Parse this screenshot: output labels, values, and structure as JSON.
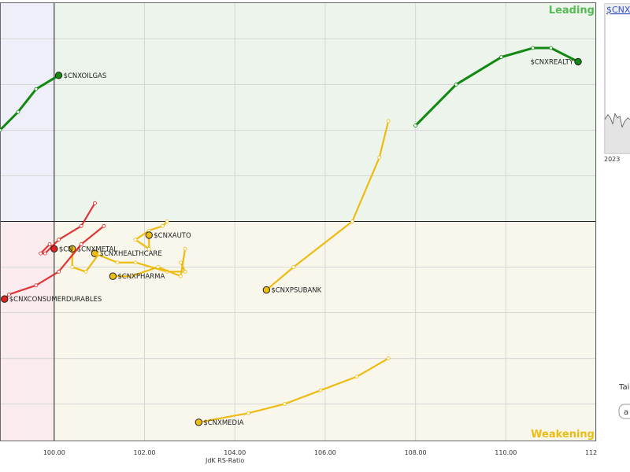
{
  "chart_data": {
    "type": "scatter",
    "subtype": "relative-rotation-graph",
    "title": "",
    "xlabel": "JdK RS-Ratio",
    "ylabel": "",
    "xlim": [
      98.8,
      112.0
    ],
    "ylim": [
      95.2,
      104.8
    ],
    "center": [
      100.0,
      100.0
    ],
    "x_ticks": [
      "100.00",
      "102.00",
      "104.00",
      "106.00",
      "108.00",
      "110.00",
      "112.00"
    ],
    "x_tick_values": [
      100,
      102,
      104,
      106,
      108,
      110,
      112
    ],
    "grid": true,
    "quadrant_labels": {
      "leading": "Leading",
      "weakening": "Weakening"
    },
    "colors": {
      "leading_bg": "#ecf4ec",
      "weakening_bg": "#f9f7ec",
      "lagging_bg": "#f9ebee",
      "improving_bg": "#efeff9",
      "green": "#118811",
      "yellow": "#eebb11",
      "red": "#dd2222",
      "leading_text": "#55bb55",
      "weakening_text": "#eebb11"
    },
    "series": [
      {
        "name": "$CNXREALTY",
        "color": "green",
        "points": [
          [
            108.0,
            102.1
          ],
          [
            108.9,
            103.0
          ],
          [
            109.9,
            103.6
          ],
          [
            110.6,
            103.8
          ],
          [
            111.0,
            103.8
          ],
          [
            111.6,
            103.5
          ]
        ]
      },
      {
        "name": "$CNXOILGAS",
        "color": "green",
        "points": [
          [
            98.8,
            102.0
          ],
          [
            99.2,
            102.4
          ],
          [
            99.6,
            102.9
          ],
          [
            100.1,
            103.2
          ]
        ]
      },
      {
        "name": "$CNXPSUBANK",
        "color": "yellow",
        "points": [
          [
            107.4,
            102.2
          ],
          [
            107.2,
            101.4
          ],
          [
            106.6,
            100.0
          ],
          [
            105.3,
            99.0
          ],
          [
            104.7,
            98.5
          ]
        ]
      },
      {
        "name": "$CNXMEDIA",
        "color": "yellow",
        "points": [
          [
            107.4,
            97.0
          ],
          [
            106.7,
            96.6
          ],
          [
            105.9,
            96.3
          ],
          [
            105.1,
            96.0
          ],
          [
            104.3,
            95.8
          ],
          [
            103.2,
            95.6
          ]
        ]
      },
      {
        "name": "$CNXAUTO",
        "color": "yellow",
        "points": [
          [
            102.5,
            100.0
          ],
          [
            102.4,
            99.9
          ],
          [
            102.1,
            99.8
          ],
          [
            101.8,
            99.6
          ],
          [
            102.1,
            99.4
          ],
          [
            102.1,
            99.7
          ]
        ]
      },
      {
        "name": "$CNXHEALTHCARE",
        "color": "yellow",
        "points": [
          [
            102.8,
            99.1
          ],
          [
            102.9,
            98.9
          ],
          [
            102.5,
            98.9
          ],
          [
            101.8,
            99.1
          ],
          [
            101.4,
            99.1
          ],
          [
            100.9,
            99.3
          ]
        ]
      },
      {
        "name": "$CNXPHARMA",
        "color": "yellow",
        "points": [
          [
            102.9,
            99.4
          ],
          [
            102.8,
            98.8
          ],
          [
            102.3,
            99.0
          ],
          [
            101.7,
            98.8
          ],
          [
            101.3,
            98.8
          ]
        ]
      },
      {
        "name": "$CNXMETAL",
        "color": "yellow",
        "points": [
          [
            101.0,
            99.3
          ],
          [
            100.7,
            98.9
          ],
          [
            100.4,
            99.0
          ],
          [
            100.4,
            99.4
          ]
        ]
      },
      {
        "name": "$CNXFMCG",
        "display_label": "$CN",
        "color": "red",
        "points": [
          [
            100.9,
            100.4
          ],
          [
            100.6,
            99.9
          ],
          [
            100.1,
            99.6
          ],
          [
            99.8,
            99.3
          ],
          [
            99.7,
            99.3
          ],
          [
            99.9,
            99.5
          ],
          [
            100.0,
            99.4
          ]
        ]
      },
      {
        "name": "$CNXCONSUMERDURABLES",
        "color": "red",
        "points": [
          [
            101.1,
            99.9
          ],
          [
            100.6,
            99.5
          ],
          [
            100.1,
            98.9
          ],
          [
            99.6,
            98.6
          ],
          [
            99.0,
            98.4
          ],
          [
            98.9,
            98.3
          ]
        ]
      }
    ]
  },
  "side_panel": {
    "title": "$CNX",
    "year": "2023",
    "tail_label": "Tai",
    "control_label": "a"
  }
}
